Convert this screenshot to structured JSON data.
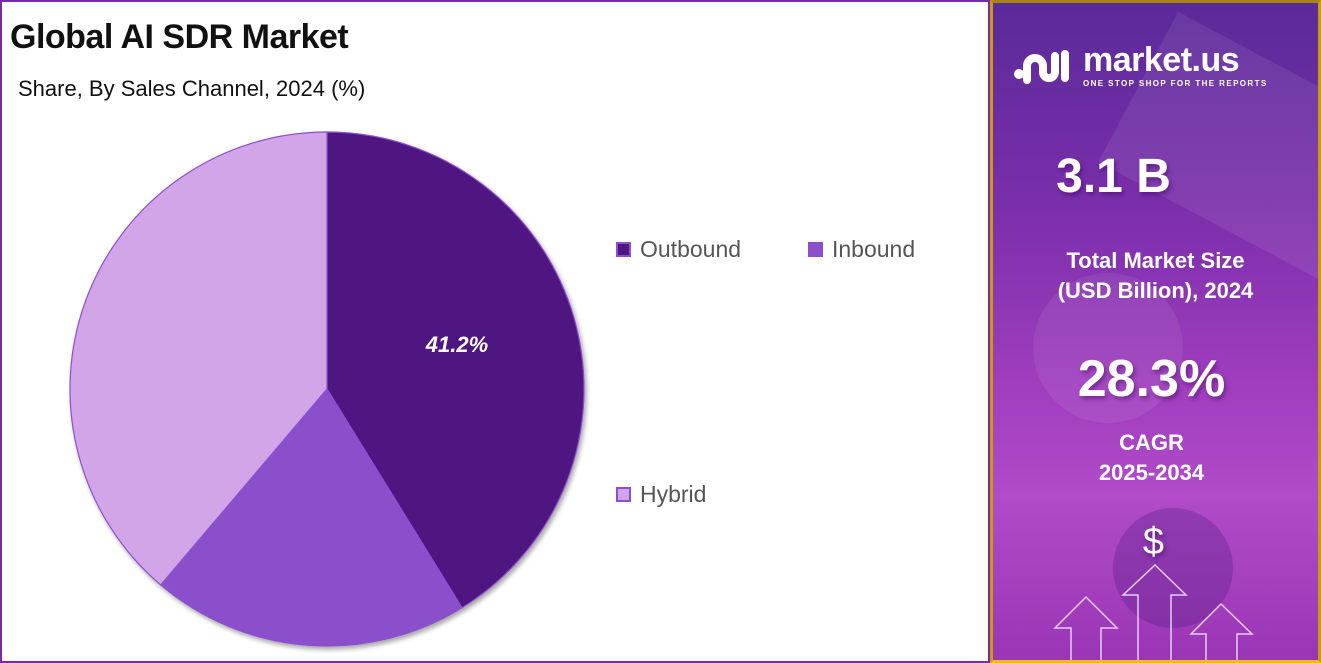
{
  "header": {
    "title": "Global AI SDR Market",
    "subtitle": "Share, By Sales Channel, 2024 (%)"
  },
  "chart_data": {
    "type": "pie",
    "title": "Global AI SDR Market",
    "subtitle": "Share, By Sales Channel, 2024 (%)",
    "categories": [
      "Outbound",
      "Inbound",
      "Hybrid"
    ],
    "values": [
      41.2,
      20.0,
      38.8
    ],
    "colors": [
      "#4f1782",
      "#8b50cc",
      "#d2a5e9"
    ],
    "data_labels": [
      "41.2%",
      "",
      ""
    ],
    "start_angle": "12 o'clock, clockwise",
    "legend_position": "right"
  },
  "legend": {
    "items": [
      {
        "label": "Outbound",
        "color": "#4f1782"
      },
      {
        "label": "Inbound",
        "color": "#8b50cc"
      },
      {
        "label": "Hybrid",
        "color": "#d2a5e9"
      }
    ]
  },
  "sidebar": {
    "brand": {
      "name": "market.us",
      "tagline": "ONE STOP SHOP FOR THE REPORTS"
    },
    "market_size": {
      "value": "3.1 B",
      "label_line1": "Total Market Size",
      "label_line2": "(USD Billion), 2024"
    },
    "cagr": {
      "value": "28.3%",
      "label_line1": "CAGR",
      "label_line2": "2025-2034"
    },
    "dollar_symbol": "$"
  }
}
